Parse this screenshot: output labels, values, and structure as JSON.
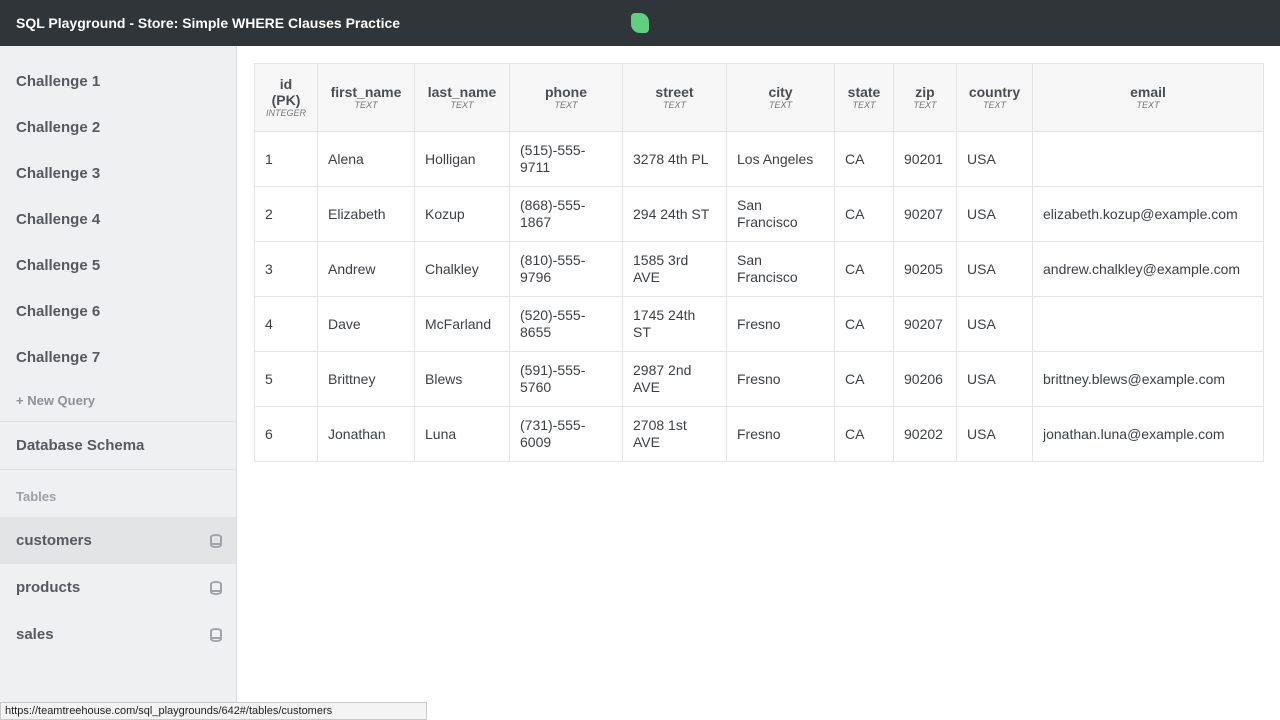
{
  "header": {
    "title": "SQL Playground - Store: Simple WHERE Clauses Practice",
    "logo": "treehouse-logo"
  },
  "sidebar": {
    "challenges": [
      "Challenge 1",
      "Challenge 2",
      "Challenge 3",
      "Challenge 4",
      "Challenge 5",
      "Challenge 6",
      "Challenge 7"
    ],
    "new_query": "+ New Query",
    "schema": "Database Schema",
    "tables_label": "Tables",
    "tables": [
      {
        "name": "customers",
        "icon": "database-icon",
        "active": true
      },
      {
        "name": "products",
        "icon": "database-icon"
      },
      {
        "name": "sales",
        "icon": "database-icon"
      }
    ]
  },
  "table": {
    "columns": [
      {
        "name": "id (PK)",
        "type": "INTEGER"
      },
      {
        "name": "first_name",
        "type": "TEXT"
      },
      {
        "name": "last_name",
        "type": "TEXT"
      },
      {
        "name": "phone",
        "type": "TEXT"
      },
      {
        "name": "street",
        "type": "TEXT"
      },
      {
        "name": "city",
        "type": "TEXT"
      },
      {
        "name": "state",
        "type": "TEXT"
      },
      {
        "name": "zip",
        "type": "TEXT"
      },
      {
        "name": "country",
        "type": "TEXT"
      },
      {
        "name": "email",
        "type": "TEXT"
      }
    ],
    "rows": [
      [
        "1",
        "Alena",
        "Holligan",
        "(515)-555-9711",
        "3278 4th PL",
        "Los Angeles",
        "CA",
        "90201",
        "USA",
        ""
      ],
      [
        "2",
        "Elizabeth",
        "Kozup",
        "(868)-555-1867",
        "294 24th ST",
        "San Francisco",
        "CA",
        "90207",
        "USA",
        "elizabeth.kozup@example.com"
      ],
      [
        "3",
        "Andrew",
        "Chalkley",
        "(810)-555-9796",
        "1585 3rd AVE",
        "San Francisco",
        "CA",
        "90205",
        "USA",
        "andrew.chalkley@example.com"
      ],
      [
        "4",
        "Dave",
        "McFarland",
        "(520)-555-8655",
        "1745 24th ST",
        "Fresno",
        "CA",
        "90207",
        "USA",
        ""
      ],
      [
        "5",
        "Brittney",
        "Blews",
        "(591)-555-5760",
        "2987 2nd AVE",
        "Fresno",
        "CA",
        "90206",
        "USA",
        "brittney.blews@example.com"
      ],
      [
        "6",
        "Jonathan",
        "Luna",
        "(731)-555-6009",
        "2708 1st AVE",
        "Fresno",
        "CA",
        "90202",
        "USA",
        "jonathan.luna@example.com"
      ]
    ]
  },
  "status_url": "https://teamtreehouse.com/sql_playgrounds/642#/tables/customers"
}
